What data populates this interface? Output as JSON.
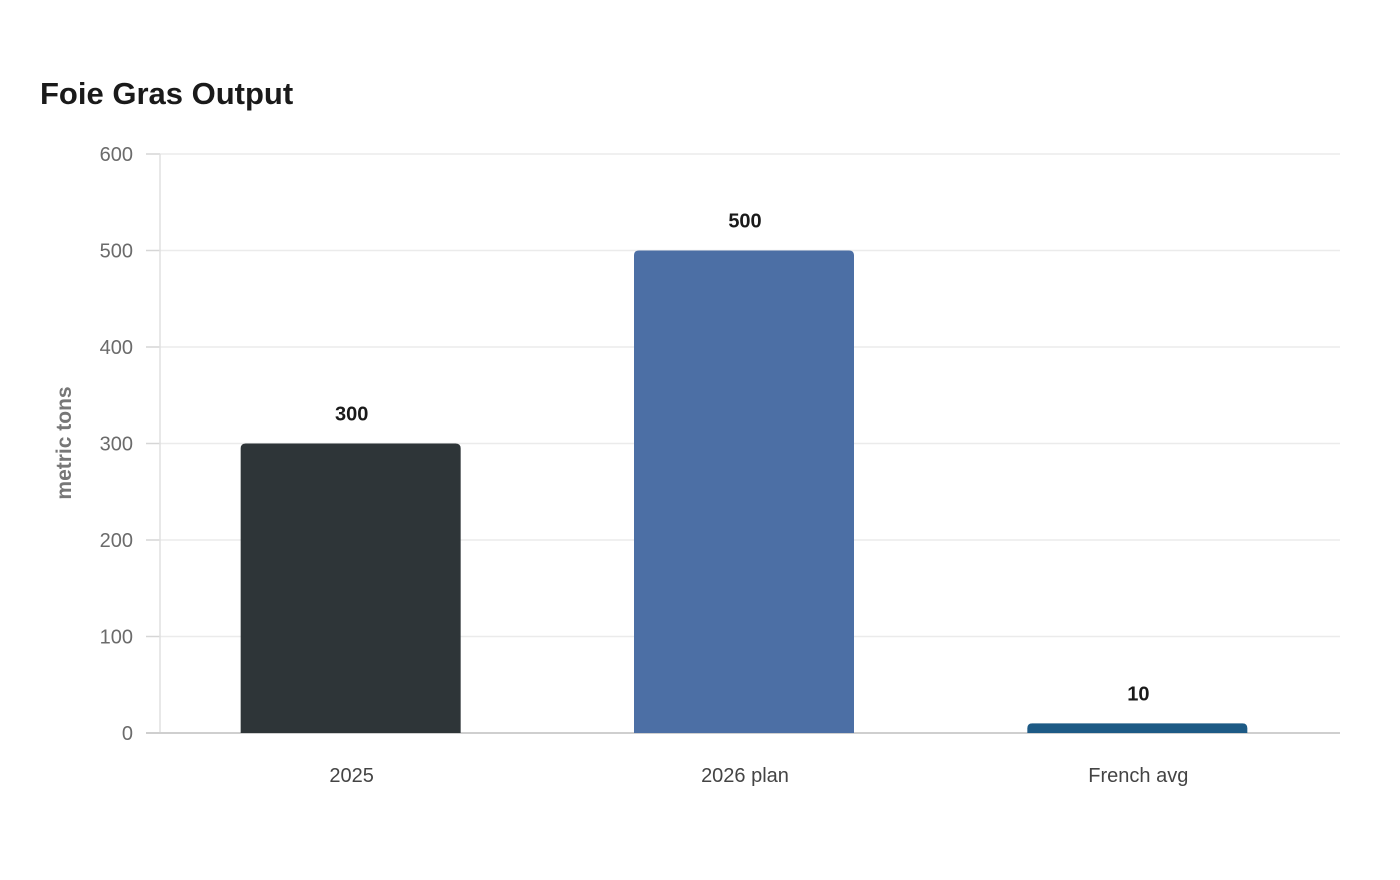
{
  "chart_data": {
    "type": "bar",
    "title": "Foie Gras Output",
    "ylabel": "metric tons",
    "xlabel": "",
    "categories": [
      "2025",
      "2026 plan",
      "French avg"
    ],
    "values": [
      300,
      500,
      10
    ],
    "colors": [
      "#2e3538",
      "#4c6fa5",
      "#1d5a85"
    ],
    "ylim": [
      0,
      600
    ],
    "yticks": [
      0,
      100,
      200,
      300,
      400,
      500,
      600
    ],
    "grid": true,
    "legend": "none"
  }
}
